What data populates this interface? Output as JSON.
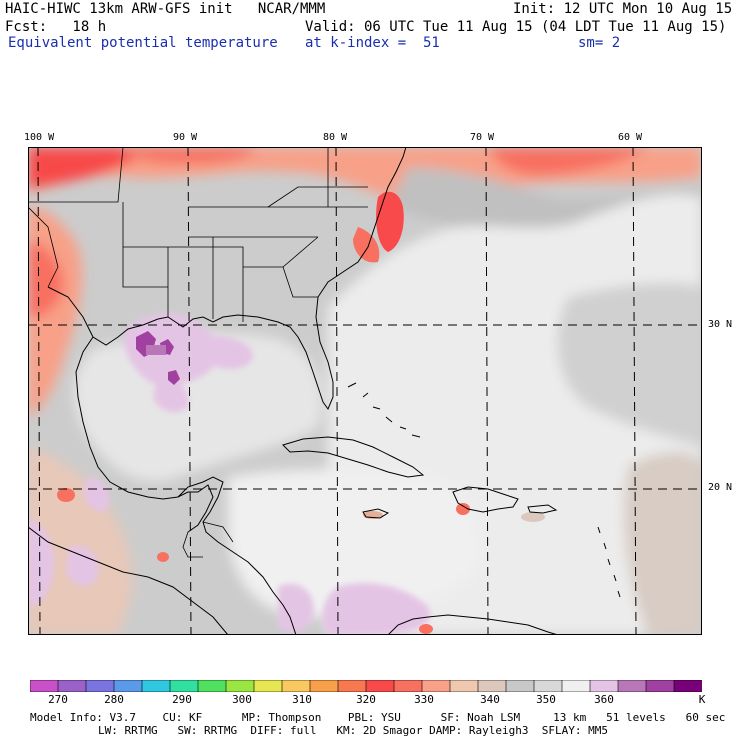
{
  "header": {
    "model_line": "HAIC-HIWC 13km ARW-GFS init   NCAR/MMM",
    "init_line": "Init: 12 UTC Mon 10 Aug 15",
    "fcst_line": "Fcst:   18 h",
    "valid_line": "Valid: 06 UTC Tue 11 Aug 15 (04 LDT Tue 11 Aug 15)",
    "field_name": "Equivalent potential temperature",
    "level_line": "at k-index =  51",
    "smooth_line": "sm= 2"
  },
  "map": {
    "lon_labels": [
      "100 W",
      "90 W",
      "80 W",
      "70 W",
      "60 W"
    ],
    "lat_labels": [
      "30 N",
      "20 N"
    ],
    "line_color": "#000000",
    "grid_style": "dashed"
  },
  "colorbar": {
    "unit": "K",
    "tick_labels": [
      "270",
      "280",
      "290",
      "300",
      "310",
      "320",
      "330",
      "340",
      "350",
      "360"
    ],
    "colors": [
      "#c850c8",
      "#9a62c8",
      "#7a74e0",
      "#5a9ae8",
      "#30c8e0",
      "#30e0a0",
      "#50e060",
      "#9ae640",
      "#e6e650",
      "#fac860",
      "#f8a048",
      "#f87850",
      "#f84a4a",
      "#f87060",
      "#f8a088",
      "#f0c8b0",
      "#dcc8bc",
      "#c8c8c8",
      "#d8d8d8",
      "#f0f0f0",
      "#e4c4e4",
      "#b878b8",
      "#a040a0",
      "#780078"
    ]
  },
  "model_info": {
    "line1": "Model Info: V3.7    CU: KF      MP: Thompson    PBL: YSU      SF: Noah LSM     13 km   51 levels   60 sec",
    "line2": "LW: RRTMG   SW: RRTMG  DIFF: full   KM: 2D Smagor DAMP: Rayleigh3  SFLAY: MM5"
  }
}
